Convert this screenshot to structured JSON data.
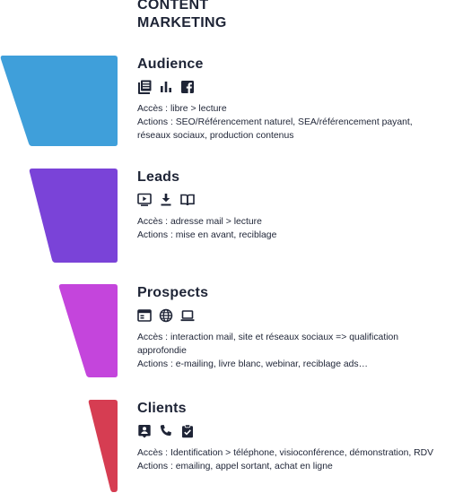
{
  "title": {
    "line1": "CONTENT",
    "line2": "MARKETING"
  },
  "colors": {
    "audience": "#3f9fda",
    "leads": "#7a43d8",
    "prospects": "#c445dc",
    "clients": "#d63d52",
    "text": "#1e2436"
  },
  "stages": [
    {
      "name": "Audience",
      "icons": [
        "newspaper-icon",
        "bar-chart-icon",
        "facebook-icon"
      ],
      "access": "Accès : libre > lecture",
      "actions_line1": "Actions : SEO/Référencement  naturel, SEA/référencement payant,",
      "actions_line2": "réseaux sociaux, production contenus"
    },
    {
      "name": "Leads",
      "icons": [
        "video-play-icon",
        "download-icon",
        "book-icon"
      ],
      "access": "Accès : adresse mail > lecture",
      "actions_line1": "Actions : mise en avant, reciblage",
      "actions_line2": ""
    },
    {
      "name": "Prospects",
      "icons": [
        "browser-window-icon",
        "globe-icon",
        "laptop-icon"
      ],
      "access_line1": "Accès : interaction mail, site et réseaux sociaux => qualification",
      "access_line2": "approfondie",
      "actions_line1": "Actions : e-mailing, livre blanc, webinar, reciblage ads…"
    },
    {
      "name": "Clients",
      "icons": [
        "contact-badge-icon",
        "phone-icon",
        "clipboard-check-icon"
      ],
      "access": "Accès : Identification > téléphone, visioconférence, démonstration, RDV",
      "actions_line1": "Actions : emailing, appel sortant, achat en ligne"
    }
  ]
}
